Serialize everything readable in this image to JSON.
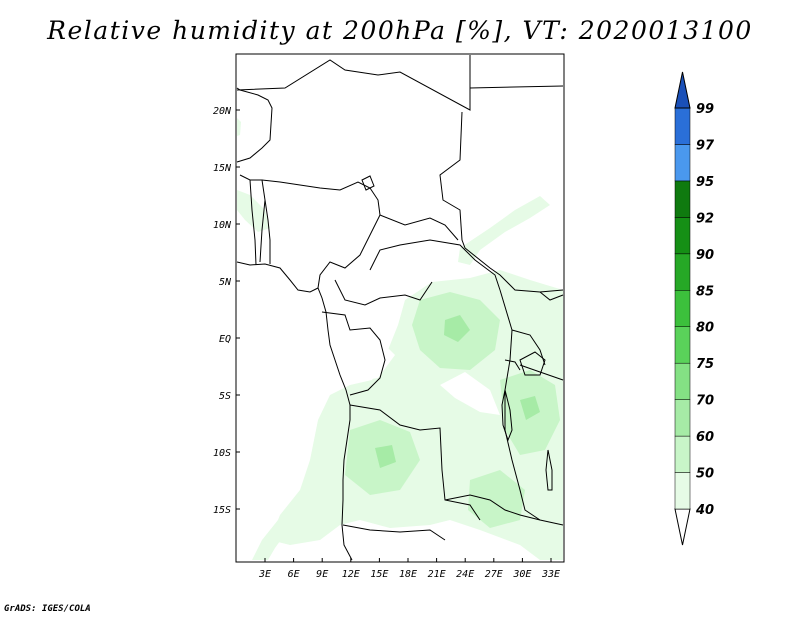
{
  "title": "Relative humidity at 200hPa [%], VT: 2020013100",
  "credit": "GrADS: IGES/COLA",
  "map": {
    "lon_range": [
      0,
      34
    ],
    "lat_range": [
      -20,
      25
    ],
    "lat_ticks": [
      "20N",
      "15N",
      "10N",
      "5N",
      "EQ",
      "5S",
      "10S",
      "15S"
    ],
    "lon_ticks": [
      "3E",
      "6E",
      "9E",
      "12E",
      "15E",
      "18E",
      "21E",
      "24E",
      "27E",
      "30E",
      "33E"
    ]
  },
  "colorbar": {
    "levels": [
      "40",
      "50",
      "60",
      "70",
      "75",
      "80",
      "85",
      "90",
      "92",
      "95",
      "97",
      "99"
    ],
    "colors": [
      "#ffffff",
      "#e6fbe6",
      "#c8f5c8",
      "#a6eba6",
      "#84e184",
      "#5ad25a",
      "#3cc03c",
      "#26a826",
      "#158f15",
      "#0f7a0f",
      "#4a98ee",
      "#2a6fd8",
      "#1a50b8"
    ]
  }
}
